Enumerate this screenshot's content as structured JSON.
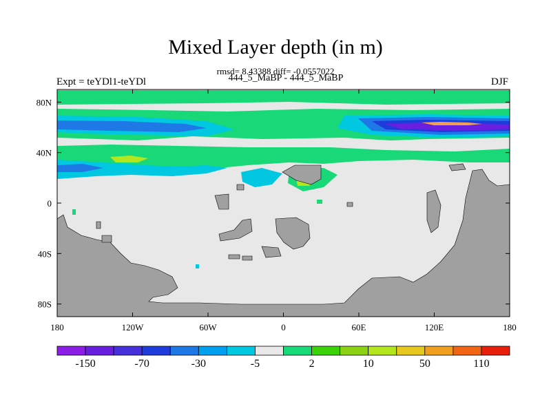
{
  "figure": {
    "title": "Mixed Layer depth (in m)",
    "stats": "rmsd= 8.43388 diff= -0.0557022",
    "subtitle": "444_5_MaBP - 444_5_MaBP",
    "experiment": "Expt = teYDl1-teYDl",
    "season": "DJF"
  },
  "map": {
    "lon_range": [
      -180,
      180
    ],
    "lat_range": [
      -90,
      90
    ],
    "x_ticks": [
      {
        "lon": -180,
        "label": "180"
      },
      {
        "lon": -120,
        "label": "120W"
      },
      {
        "lon": -60,
        "label": "60W"
      },
      {
        "lon": 0,
        "label": "0"
      },
      {
        "lon": 60,
        "label": "60E"
      },
      {
        "lon": 120,
        "label": "120E"
      },
      {
        "lon": 180,
        "label": "180"
      }
    ],
    "y_ticks": [
      {
        "lat": 80,
        "label": "80N"
      },
      {
        "lat": 40,
        "label": "40N"
      },
      {
        "lat": 0,
        "label": "0"
      },
      {
        "lat": -40,
        "label": "40S"
      },
      {
        "lat": -80,
        "label": "80S"
      }
    ],
    "colors": {
      "land": "#a0a0a0",
      "near_zero": "#e8e8e8",
      "green": "#18d878",
      "lightblue": "#00c8e0",
      "blue": "#1e78e6",
      "darkblue": "#1e3cdc",
      "purple": "#6a1ee0",
      "yellowgreen": "#b4e61e",
      "orange": "#f0a050"
    }
  },
  "colorbar": {
    "colors": [
      "#8c1ee6",
      "#6a1ee0",
      "#4630dc",
      "#1e3cdc",
      "#1e78e6",
      "#00a0f0",
      "#00c8e0",
      "#e8e8e8",
      "#18d878",
      "#3cd20a",
      "#8cd214",
      "#b4e61e",
      "#e6c81e",
      "#f0a01e",
      "#f06414",
      "#e61e0a"
    ],
    "labels": [
      {
        "after_box": 1,
        "text": "-150"
      },
      {
        "after_box": 3,
        "text": "-70"
      },
      {
        "after_box": 5,
        "text": "-30"
      },
      {
        "after_box": 7,
        "text": "-5"
      },
      {
        "after_box": 9,
        "text": "2"
      },
      {
        "after_box": 11,
        "text": "10"
      },
      {
        "after_box": 13,
        "text": "50"
      },
      {
        "after_box": 15,
        "text": "110"
      }
    ]
  }
}
